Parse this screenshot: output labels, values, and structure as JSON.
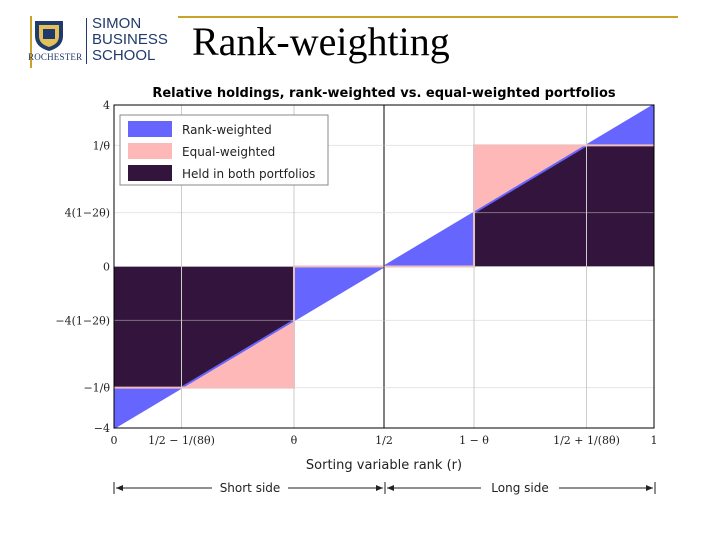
{
  "header": {
    "logo_line1": "SIMON",
    "logo_line2": "BUSINESS",
    "logo_line3": "SCHOOL",
    "logo_univ": "ROCHESTER",
    "title": "Rank-weighting"
  },
  "colors": {
    "rank": "#6666ff",
    "equal": "#ffb8b8",
    "both": "#33143c",
    "accent": "#c9a227",
    "brand": "#1f3a6b"
  },
  "chart_data": {
    "type": "area",
    "title": "Relative holdings, rank-weighted vs. equal-weighted portfolios",
    "xlabel": "Sorting variable rank (r)",
    "xlim": [
      0,
      1
    ],
    "ylim": [
      -4,
      4
    ],
    "theta": 0.3333,
    "x_ticks": [
      {
        "label": "0",
        "x": 0
      },
      {
        "label": "1/2 − 1/(8θ)",
        "x": 0.125
      },
      {
        "label": "θ",
        "x": 0.3333
      },
      {
        "label": "1/2",
        "x": 0.5
      },
      {
        "label": "1 − θ",
        "x": 0.6667
      },
      {
        "label": "1/2 + 1/(8θ)",
        "x": 0.875
      },
      {
        "label": "1",
        "x": 1
      }
    ],
    "y_ticks": [
      {
        "label": "4",
        "y": 4
      },
      {
        "label": "1/θ",
        "y": 3
      },
      {
        "label": "4(1−2θ)",
        "y": 1.3333
      },
      {
        "label": "0",
        "y": 0
      },
      {
        "label": "−4(1−2θ)",
        "y": -1.3333
      },
      {
        "label": "−1/θ",
        "y": -3
      },
      {
        "label": "−4",
        "y": -4
      }
    ],
    "series": [
      {
        "name": "Rank-weighted",
        "x": [
          0,
          1
        ],
        "y": [
          -4,
          4
        ]
      },
      {
        "name": "Equal-weighted",
        "x": [
          0,
          0.3333,
          0.3333,
          0.6667,
          0.6667,
          1
        ],
        "y": [
          -3,
          -3,
          0,
          0,
          3,
          3
        ]
      },
      {
        "name": "Held in both portfolios"
      }
    ],
    "legend_position": "top-left",
    "grid": true,
    "bottom_labels": {
      "short": "Short side",
      "long": "Long side"
    }
  }
}
